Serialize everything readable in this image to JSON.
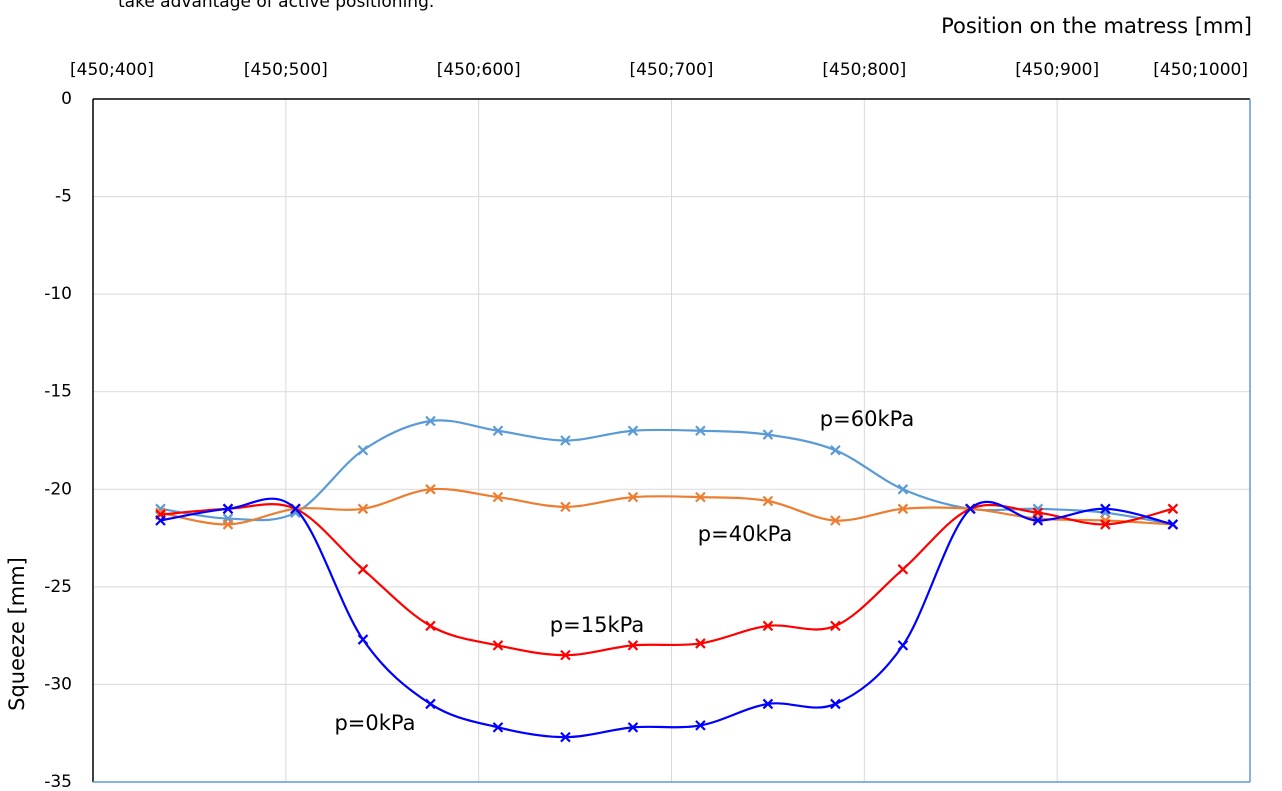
{
  "chart_data": {
    "type": "line",
    "note": "take advantage of active positioning.",
    "x_label": "Position on the matress [mm]",
    "y_label": "Squeeze [mm]",
    "x": [
      435,
      470,
      505,
      540,
      575,
      610,
      645,
      680,
      715,
      750,
      785,
      820,
      855,
      890,
      925,
      960
    ],
    "xlim": [
      400,
      1000
    ],
    "xticks": [
      {
        "value": 400,
        "label": "[450;400]"
      },
      {
        "value": 500,
        "label": "[450;500]"
      },
      {
        "value": 600,
        "label": "[450;600]"
      },
      {
        "value": 700,
        "label": "[450;700]"
      },
      {
        "value": 800,
        "label": "[450;800]"
      },
      {
        "value": 900,
        "label": "[450;900]"
      },
      {
        "value": 1000,
        "label": "[450;1000]"
      }
    ],
    "ylim": [
      -35,
      0
    ],
    "yticks": [
      0,
      -5,
      -10,
      -15,
      -20,
      -25,
      -30,
      -35
    ],
    "grid": true,
    "smooth": true,
    "series": [
      {
        "name": "p=60kPa",
        "color": "#5b9bd5",
        "values": [
          -21.0,
          -21.5,
          -21.2,
          -18.0,
          -16.5,
          -17.0,
          -17.5,
          -17.0,
          -17.0,
          -17.2,
          -18.0,
          -20.0,
          -21.0,
          -21.0,
          -21.2,
          -21.8
        ]
      },
      {
        "name": "p=40kPa",
        "color": "#ed7d31",
        "values": [
          -21.2,
          -21.8,
          -21.0,
          -21.0,
          -20.0,
          -20.4,
          -20.9,
          -20.4,
          -20.4,
          -20.6,
          -21.6,
          -21.0,
          -21.0,
          -21.5,
          -21.6,
          -21.8
        ]
      },
      {
        "name": "p=15kPa",
        "color": "#ff0000",
        "values": [
          -21.3,
          -21.0,
          -21.0,
          -24.1,
          -27.0,
          -28.0,
          -28.5,
          -28.0,
          -27.9,
          -27.0,
          -27.0,
          -24.1,
          -21.0,
          -21.2,
          -21.8,
          -21.0
        ]
      },
      {
        "name": "p=0kPa",
        "color": "#0000ff",
        "values": [
          -21.6,
          -21.0,
          -21.0,
          -27.7,
          -31.0,
          -32.2,
          -32.7,
          -32.2,
          -32.1,
          -31.0,
          -31.0,
          -28.0,
          -21.0,
          -21.6,
          -21.0,
          -21.8
        ]
      }
    ]
  }
}
